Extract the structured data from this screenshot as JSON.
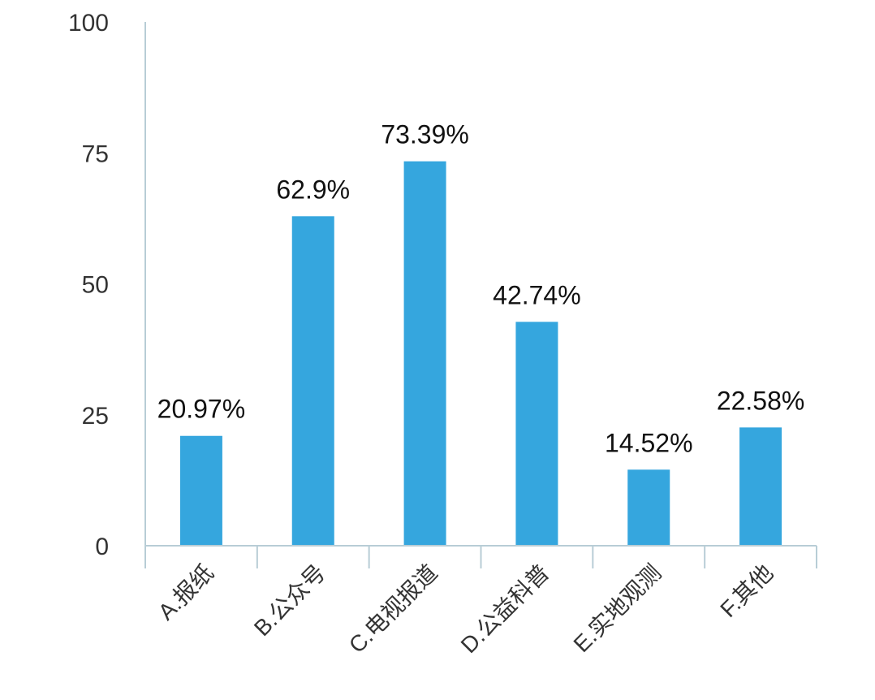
{
  "chart_data": {
    "type": "bar",
    "categories": [
      "A.报纸",
      "B.公众号",
      "C.电视报道",
      "D.公益科普",
      "E.实地观测",
      "F.其他"
    ],
    "values": [
      20.97,
      62.9,
      73.39,
      42.74,
      14.52,
      22.58
    ],
    "data_labels": [
      "20.97%",
      "62.9%",
      "73.39%",
      "42.74%",
      "14.52%",
      "22.58%"
    ],
    "yticks": [
      "0",
      "25",
      "50",
      "75",
      "100"
    ],
    "ylim": [
      0,
      100
    ],
    "grid": false,
    "legend": "none",
    "colors": {
      "bar": "#35a6de",
      "axis": "#b8cdd6"
    }
  }
}
